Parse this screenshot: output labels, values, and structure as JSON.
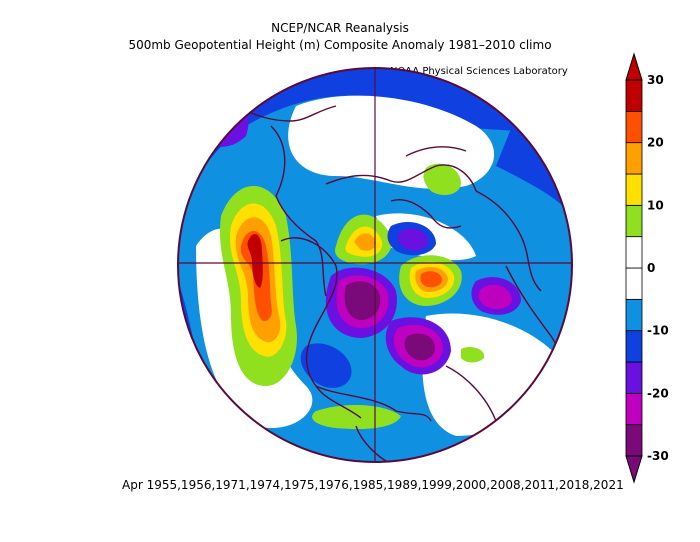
{
  "header": {
    "title": "NCEP/NCAR Reanalysis",
    "subtitle": "500mb Geopotential Height (m) Composite Anomaly 1981–2010 climo",
    "credit": "NOAA Physical Sciences Laboratory"
  },
  "footer": {
    "dates": "Apr 1955,1956,1971,1974,1975,1976,1985,1989,1999,2000,2008,2011,2018,2021"
  },
  "colorbar": {
    "ticks": [
      "30",
      "20",
      "10",
      "0",
      "-10",
      "-20",
      "-30"
    ],
    "colors": [
      "#7a0a7a",
      "#c000c0",
      "#6a10e0",
      "#1040e0",
      "#1090e0",
      "#ffffff",
      "#ffffff",
      "#90e020",
      "#ffe000",
      "#ffa000",
      "#ff5000",
      "#c00000"
    ]
  }
}
